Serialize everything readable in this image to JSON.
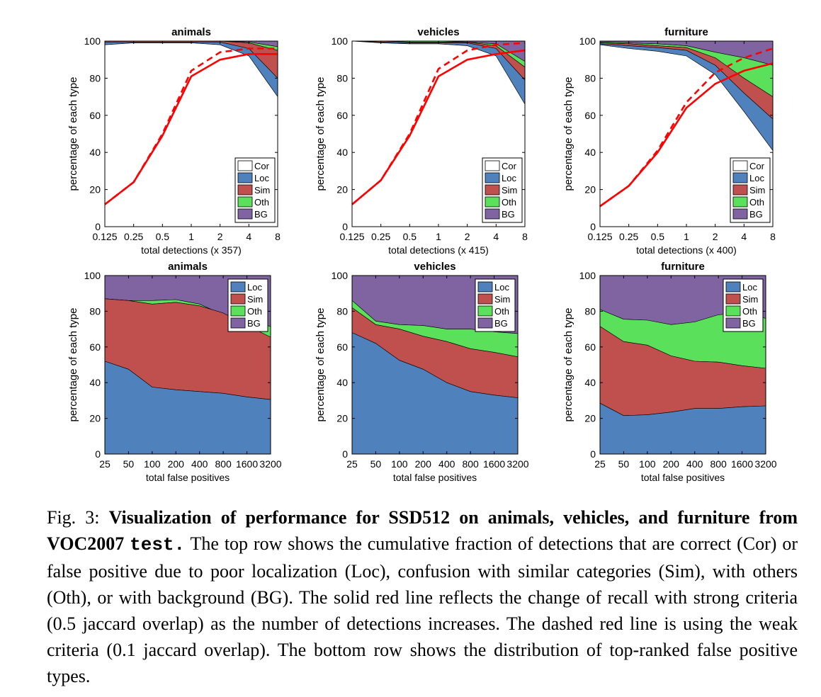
{
  "colors": {
    "Cor": "#ffffff",
    "Loc": "#4f81bd",
    "Sim": "#c0504d",
    "Oth": "#5be05b",
    "BG": "#8064a2",
    "recall": "#ff0000"
  },
  "chart_data": [
    {
      "type": "area",
      "title": "animals",
      "xlabel": "total detections (x 357)",
      "ylabel": "percentage of each type",
      "xticks": [
        "0.125",
        "0.25",
        "0.5",
        "1",
        "2",
        "4",
        "8"
      ],
      "x": [
        0.125,
        0.25,
        0.5,
        1,
        2,
        4,
        8
      ],
      "ylim": [
        0,
        100
      ],
      "yticks": [
        "0",
        "20",
        "40",
        "60",
        "80",
        "100"
      ],
      "legend": [
        "Cor",
        "Loc",
        "Sim",
        "Oth",
        "BG"
      ],
      "cumulative": {
        "Cor": [
          98,
          99,
          99,
          99,
          98,
          92,
          70
        ],
        "Loc": [
          99.5,
          99.5,
          99.5,
          99.5,
          99.5,
          96,
          80
        ],
        "Sim": [
          100,
          100,
          100,
          100,
          100,
          99,
          95
        ],
        "Oth": [
          100,
          100,
          100,
          100,
          100,
          99.5,
          97
        ],
        "BG": [
          100,
          100,
          100,
          100,
          100,
          100,
          100
        ]
      },
      "recall_strong": [
        12,
        24,
        49,
        81,
        90,
        93,
        93
      ],
      "recall_weak": [
        12,
        24,
        50,
        84,
        94,
        96,
        96
      ]
    },
    {
      "type": "area",
      "title": "vehicles",
      "xlabel": "total detections (x 415)",
      "ylabel": "percentage of each type",
      "xticks": [
        "0.125",
        "0.25",
        "0.5",
        "1",
        "2",
        "4",
        "8"
      ],
      "x": [
        0.125,
        0.25,
        0.5,
        1,
        2,
        4,
        8
      ],
      "ylim": [
        0,
        100
      ],
      "yticks": [
        "0",
        "20",
        "40",
        "60",
        "80",
        "100"
      ],
      "legend": [
        "Cor",
        "Loc",
        "Sim",
        "Oth",
        "BG"
      ],
      "cumulative": {
        "Cor": [
          100,
          99,
          98.5,
          98.5,
          97.5,
          92,
          66
        ],
        "Loc": [
          100,
          99.5,
          99,
          99,
          99,
          96,
          79
        ],
        "Sim": [
          100,
          100,
          99.5,
          99.5,
          99.5,
          97.5,
          86
        ],
        "Oth": [
          100,
          100,
          100,
          100,
          99.5,
          98.5,
          89
        ],
        "BG": [
          100,
          100,
          100,
          100,
          100,
          100,
          100
        ]
      },
      "recall_strong": [
        12,
        25,
        49,
        81,
        90,
        93,
        95
      ],
      "recall_weak": [
        12,
        25,
        50,
        85,
        95,
        98,
        99
      ]
    },
    {
      "type": "area",
      "title": "furniture",
      "xlabel": "total detections (x 400)",
      "ylabel": "percentage of each type",
      "xticks": [
        "0.125",
        "0.25",
        "0.5",
        "1",
        "2",
        "4",
        "8"
      ],
      "x": [
        0.125,
        0.25,
        0.5,
        1,
        2,
        4,
        8
      ],
      "ylim": [
        0,
        100
      ],
      "yticks": [
        "0",
        "20",
        "40",
        "60",
        "80",
        "100"
      ],
      "legend": [
        "Cor",
        "Loc",
        "Sim",
        "Oth",
        "BG"
      ],
      "cumulative": {
        "Cor": [
          98,
          96,
          94.5,
          92,
          82,
          62,
          41
        ],
        "Loc": [
          98.5,
          97.5,
          96.5,
          95,
          87,
          72,
          58
        ],
        "Sim": [
          99,
          98.5,
          97.5,
          96.5,
          91,
          80,
          70
        ],
        "Oth": [
          99.5,
          99,
          98.5,
          97.5,
          94,
          91,
          87
        ],
        "BG": [
          100,
          100,
          100,
          100,
          100,
          100,
          100
        ]
      },
      "recall_strong": [
        11,
        22,
        40,
        64,
        77,
        84,
        88
      ],
      "recall_weak": [
        11,
        22,
        41,
        67,
        83,
        91,
        96
      ]
    },
    {
      "type": "area",
      "title": "animals",
      "xlabel": "total false positives",
      "ylabel": "percentage of each type",
      "xticks": [
        "25",
        "50",
        "100",
        "200",
        "400",
        "800",
        "1600",
        "3200"
      ],
      "x": [
        25,
        50,
        100,
        200,
        400,
        800,
        1600,
        3200
      ],
      "ylim": [
        0,
        100
      ],
      "yticks": [
        "0",
        "20",
        "40",
        "60",
        "80",
        "100"
      ],
      "legend": [
        "Loc",
        "Sim",
        "Oth",
        "BG"
      ],
      "cumulative": {
        "Loc": [
          52,
          47.5,
          37.5,
          36,
          35,
          34,
          32,
          30.5
        ],
        "Sim": [
          87,
          86,
          84,
          85,
          83,
          79,
          72,
          65.5
        ],
        "Oth": [
          87,
          86,
          86,
          86.5,
          84,
          78,
          75,
          71.5
        ],
        "BG": [
          100,
          100,
          100,
          100,
          100,
          100,
          100,
          100
        ]
      }
    },
    {
      "type": "area",
      "title": "vehicles",
      "xlabel": "total false positives",
      "ylabel": "percentage of each type",
      "xticks": [
        "25",
        "50",
        "100",
        "200",
        "400",
        "800",
        "1600",
        "3200"
      ],
      "x": [
        25,
        50,
        100,
        200,
        400,
        800,
        1600,
        3200
      ],
      "ylim": [
        0,
        100
      ],
      "yticks": [
        "0",
        "20",
        "40",
        "60",
        "80",
        "100"
      ],
      "legend": [
        "Loc",
        "Sim",
        "Oth",
        "BG"
      ],
      "cumulative": {
        "Loc": [
          68,
          62,
          52.5,
          47.5,
          40,
          35,
          33,
          31.5
        ],
        "Sim": [
          82,
          72.5,
          70,
          66,
          63,
          59,
          57,
          54.5
        ],
        "Oth": [
          86,
          74.5,
          72.5,
          72,
          70,
          70,
          68.5,
          67.5
        ],
        "BG": [
          100,
          100,
          100,
          100,
          100,
          100,
          100,
          100
        ]
      }
    },
    {
      "type": "area",
      "title": "furniture",
      "xlabel": "total false positives",
      "ylabel": "percentage of each type",
      "xticks": [
        "25",
        "50",
        "100",
        "200",
        "400",
        "800",
        "1600",
        "3200"
      ],
      "x": [
        25,
        50,
        100,
        200,
        400,
        800,
        1600,
        3200
      ],
      "ylim": [
        0,
        100
      ],
      "yticks": [
        "0",
        "20",
        "40",
        "60",
        "80",
        "100"
      ],
      "legend": [
        "Loc",
        "Sim",
        "Oth",
        "BG"
      ],
      "cumulative": {
        "Loc": [
          28.5,
          21.5,
          22,
          23.5,
          25.5,
          25.5,
          26.5,
          27
        ],
        "Sim": [
          71.5,
          63,
          61,
          55,
          52,
          51.5,
          49.5,
          48
        ],
        "Oth": [
          81,
          75.5,
          75,
          72.5,
          74,
          78,
          79,
          76
        ],
        "BG": [
          100,
          100,
          100,
          100,
          100,
          100,
          100,
          100
        ]
      }
    }
  ],
  "caption": {
    "label": "Fig. 3: ",
    "bold_text": "Visualization of performance for SSD512 on animals, vehicles, and furniture from VOC2007 ",
    "mono_text": "test.",
    "body_text": " The top row shows the cumulative fraction of detections that are correct (Cor) or false positive due to poor localization (Loc), confusion with similar categories (Sim), with others (Oth), or with background (BG). The solid red line reflects the change of recall with strong criteria (0.5 jaccard overlap) as the number of detections increases. The dashed red line is using the weak criteria (0.1 jaccard overlap). The bottom row shows the distribution of top-ranked false positive types."
  }
}
